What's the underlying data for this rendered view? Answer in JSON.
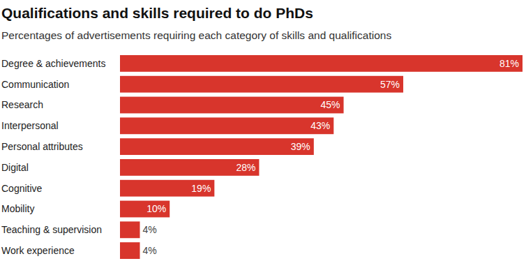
{
  "chart_data": {
    "type": "bar",
    "title": "Qualifications and skills required to do PhDs",
    "subtitle": "Percentages of advertisements requiring each category of skills and qualifications",
    "orientation": "horizontal",
    "categories": [
      "Degree & achievements",
      "Communication",
      "Research",
      "Interpersonal",
      "Personal attributes",
      "Digital",
      "Cognitive",
      "Mobility",
      "Teaching & supervision",
      "Work experience"
    ],
    "values": [
      81,
      57,
      45,
      43,
      39,
      28,
      19,
      10,
      4,
      4
    ],
    "value_labels": [
      "81%",
      "57%",
      "45%",
      "43%",
      "39%",
      "28%",
      "19%",
      "10%",
      "4%",
      "4%"
    ],
    "color": "#d8352c",
    "data_labels": true,
    "tick_labels": "y",
    "grid": false
  }
}
